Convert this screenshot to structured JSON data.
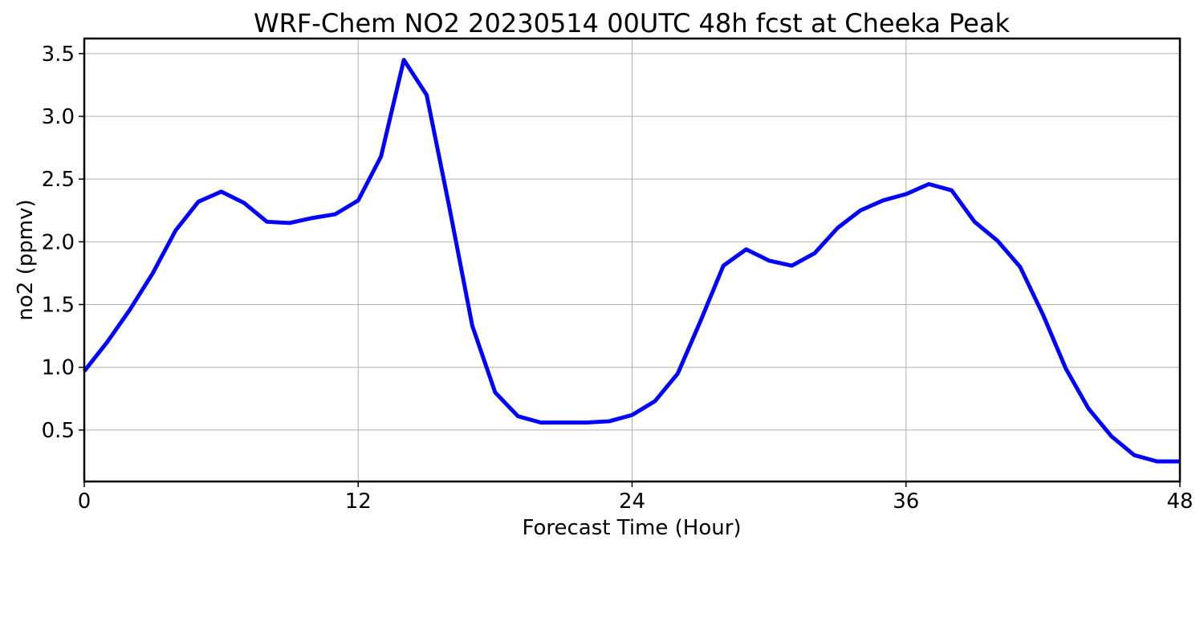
{
  "chart_data": {
    "type": "line",
    "title": "WRF-Chem NO2  20230514 00UTC 48h fcst at Cheeka Peak",
    "xlabel": "Forecast Time (Hour)",
    "ylabel": "no2  (ppmv)",
    "xlim": [
      0,
      48
    ],
    "ylim": [
      0.09,
      3.62
    ],
    "xticks": [
      0,
      12,
      24,
      36,
      48
    ],
    "yticks": [
      0.5,
      1.0,
      1.5,
      2.0,
      2.5,
      3.0,
      3.5
    ],
    "ytick_labels": [
      "0.5",
      "1.0",
      "1.5",
      "2.0",
      "2.5",
      "3.0",
      "3.5"
    ],
    "grid": true,
    "line_color": "#0000ff",
    "series": [
      {
        "x": [
          0,
          1,
          2,
          3,
          4,
          5,
          6,
          7,
          8,
          9,
          10,
          11,
          12,
          13,
          14,
          15,
          16,
          17,
          18,
          19,
          20,
          21,
          22,
          23,
          24,
          25,
          26,
          27,
          28,
          29,
          30,
          31,
          32,
          33,
          34,
          35,
          36,
          37,
          38,
          39,
          40,
          41,
          42,
          43,
          44,
          45,
          46,
          47,
          48
        ],
        "values": [
          0.97,
          1.2,
          1.46,
          1.75,
          2.09,
          2.32,
          2.4,
          2.31,
          2.16,
          2.15,
          2.19,
          2.22,
          2.33,
          2.68,
          3.45,
          3.17,
          2.27,
          1.33,
          0.8,
          0.61,
          0.56,
          0.56,
          0.56,
          0.57,
          0.62,
          0.73,
          0.95,
          1.37,
          1.81,
          1.94,
          1.85,
          1.81,
          1.91,
          2.11,
          2.25,
          2.33,
          2.38,
          2.46,
          2.41,
          2.16,
          2.01,
          1.8,
          1.42,
          0.99,
          0.67,
          0.45,
          0.3,
          0.25,
          0.25
        ]
      }
    ]
  }
}
